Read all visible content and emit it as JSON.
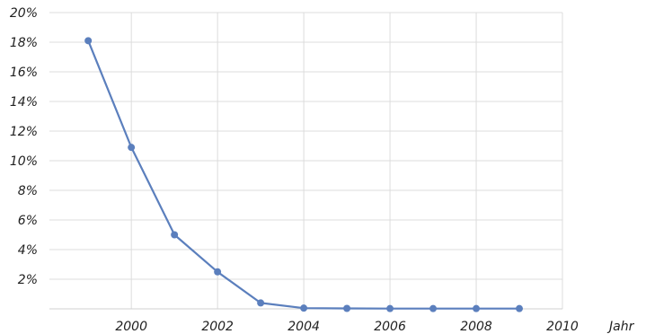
{
  "chart_data": {
    "type": "line",
    "title": "",
    "xlabel": "Jahr",
    "ylabel": "",
    "xlim": [
      1998.1,
      2010
    ],
    "ylim": [
      0,
      20
    ],
    "x_ticks": [
      2000,
      2002,
      2004,
      2006,
      2008,
      2010
    ],
    "y_ticks": [
      2,
      4,
      6,
      8,
      10,
      12,
      14,
      16,
      18,
      20
    ],
    "y_tick_suffix": "%",
    "grid": true,
    "legend": "none",
    "series": [
      {
        "color": "#5b7fbd",
        "x": [
          1999,
          2000,
          2001,
          2002,
          2003,
          2004,
          2005,
          2006,
          2007,
          2008,
          2009
        ],
        "y": [
          18.1,
          10.9,
          5.0,
          2.5,
          0.4,
          0.05,
          0.03,
          0.02,
          0.02,
          0.02,
          0.02
        ]
      }
    ]
  }
}
